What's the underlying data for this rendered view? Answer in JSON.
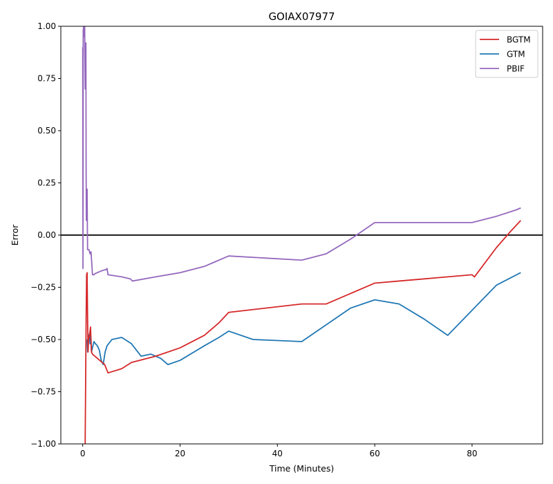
{
  "chart_data": {
    "type": "line",
    "title": "GOIAX07977",
    "xlabel": "Time (Minutes)",
    "ylabel": "Error",
    "xlim": [
      -4.5,
      94.5
    ],
    "ylim": [
      -1.0,
      1.0
    ],
    "xticks": [
      0,
      20,
      40,
      60,
      80
    ],
    "xtick_labels": [
      "0",
      "20",
      "40",
      "60",
      "80"
    ],
    "yticks": [
      -1.0,
      -0.75,
      -0.5,
      -0.25,
      0.0,
      0.25,
      0.5,
      0.75,
      1.0
    ],
    "ytick_labels": [
      "−1.00",
      "−0.75",
      "−0.50",
      "−0.25",
      "0.00",
      "0.25",
      "0.50",
      "0.75",
      "1.00"
    ],
    "grid": false,
    "legend_position": "top-right",
    "reference_line": {
      "y": 0.0,
      "color": "#000000"
    },
    "series": [
      {
        "name": "BGTM",
        "color": "#d62728",
        "x": [
          0.5,
          0.6,
          0.7,
          0.8,
          0.9,
          1.0,
          1.1,
          1.2,
          1.4,
          1.6,
          1.7,
          1.8,
          2.0,
          3.0,
          4.5,
          5.2,
          8,
          10,
          15,
          20,
          25,
          28,
          30,
          45,
          50,
          55,
          60,
          65,
          70,
          75,
          80,
          80.5,
          85,
          88,
          90
        ],
        "y": [
          -1.0,
          -0.7,
          -0.4,
          -0.19,
          -0.18,
          -0.4,
          -0.56,
          -0.5,
          -0.48,
          -0.44,
          -0.5,
          -0.56,
          -0.57,
          -0.59,
          -0.62,
          -0.66,
          -0.64,
          -0.61,
          -0.58,
          -0.54,
          -0.48,
          -0.42,
          -0.37,
          -0.33,
          -0.33,
          -0.28,
          -0.23,
          -0.22,
          -0.21,
          -0.2,
          -0.19,
          -0.2,
          -0.06,
          0.02,
          0.07
        ]
      },
      {
        "name": "GTM",
        "color": "#1f77b4",
        "x": [
          0.9,
          1.0,
          1.1,
          1.2,
          1.4,
          1.5,
          1.6,
          1.7,
          1.8,
          2.0,
          2.3,
          2.6,
          3.0,
          3.4,
          3.8,
          4.2,
          4.6,
          5.0,
          6.0,
          8.0,
          10.0,
          12.0,
          14.0,
          16.0,
          17.5,
          20,
          25,
          28,
          30,
          35,
          45,
          50,
          55,
          60,
          65,
          70,
          75,
          80,
          85,
          90
        ],
        "y": [
          -0.5,
          -0.56,
          -0.48,
          -0.5,
          -0.47,
          -0.52,
          -0.48,
          -0.52,
          -0.56,
          -0.54,
          -0.51,
          -0.52,
          -0.53,
          -0.55,
          -0.6,
          -0.62,
          -0.56,
          -0.53,
          -0.5,
          -0.49,
          -0.52,
          -0.58,
          -0.57,
          -0.59,
          -0.62,
          -0.6,
          -0.53,
          -0.49,
          -0.46,
          -0.5,
          -0.51,
          -0.43,
          -0.35,
          -0.31,
          -0.33,
          -0.4,
          -0.48,
          -0.36,
          -0.24,
          -0.18
        ]
      },
      {
        "name": "PBIF",
        "color": "#9467bd",
        "x": [
          0.0,
          0.05,
          0.1,
          0.2,
          0.3,
          0.4,
          0.5,
          0.55,
          0.6,
          0.65,
          0.7,
          0.75,
          0.8,
          0.85,
          0.9,
          0.95,
          1.0,
          1.1,
          1.3,
          1.5,
          1.7,
          1.9,
          2.0,
          2.3,
          2.5,
          3.0,
          4.0,
          4.8,
          5.0,
          5.2,
          8.0,
          9.8,
          10.0,
          10.2,
          15.0,
          20.0,
          25.0,
          27.0,
          29.0,
          30.0,
          45.0,
          50.0,
          55.0,
          60.0,
          80.0,
          85.0,
          89.0,
          90.0
        ],
        "y": [
          0.9,
          -0.16,
          0.98,
          1.0,
          0.95,
          1.0,
          0.7,
          0.92,
          0.72,
          0.92,
          0.3,
          0.07,
          0.22,
          0.12,
          0.22,
          0.05,
          -0.07,
          -0.07,
          -0.07,
          -0.09,
          -0.08,
          -0.15,
          -0.19,
          -0.19,
          -0.185,
          -0.18,
          -0.17,
          -0.165,
          -0.16,
          -0.19,
          -0.2,
          -0.21,
          -0.215,
          -0.22,
          -0.2,
          -0.18,
          -0.15,
          -0.13,
          -0.11,
          -0.1,
          -0.12,
          -0.09,
          -0.02,
          0.06,
          0.06,
          0.09,
          0.12,
          0.13
        ]
      }
    ]
  }
}
